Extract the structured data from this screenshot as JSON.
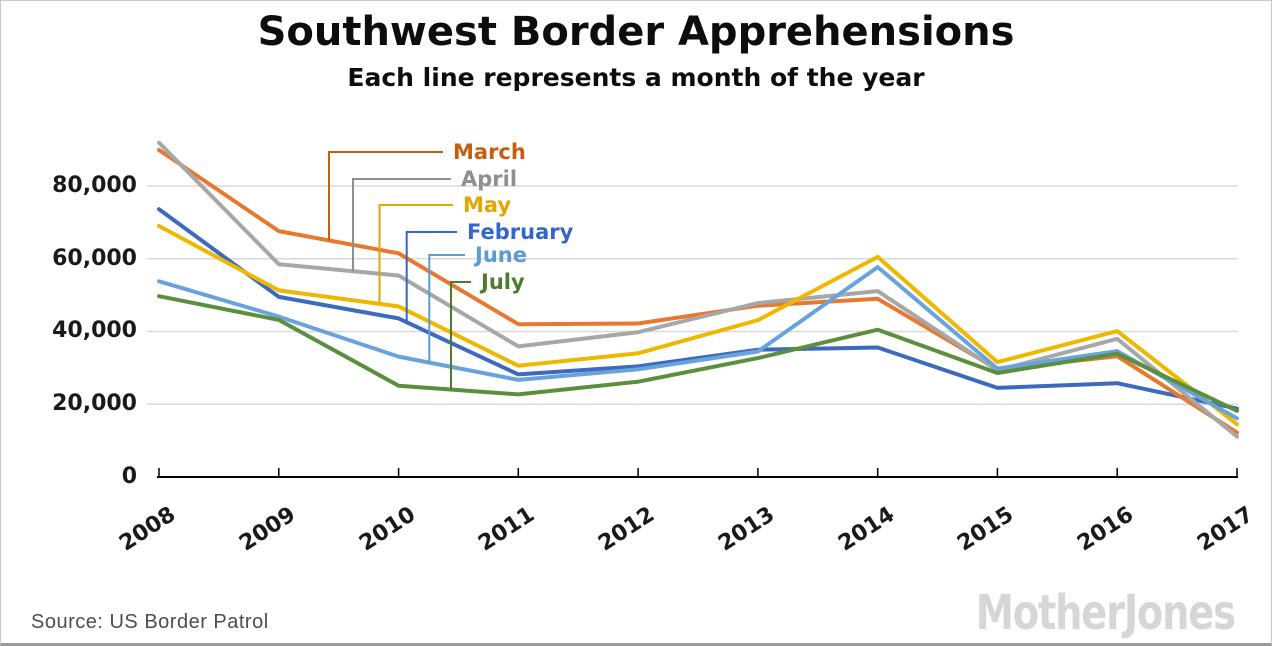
{
  "header": {
    "title": "Southwest Border Apprehensions",
    "subtitle": "Each line represents a month of the year"
  },
  "chart_data": {
    "type": "line",
    "title": "Southwest Border Apprehensions",
    "subtitle": "Each line represents a month of the year",
    "x_labels": [
      "2008",
      "2009",
      "2010",
      "2011",
      "2012",
      "2013",
      "2014",
      "2015",
      "2016",
      "2017"
    ],
    "ylim": [
      0,
      95000
    ],
    "y_ticks": [
      0,
      20000,
      40000,
      60000,
      80000
    ],
    "y_tick_labels": [
      "0",
      "20,000",
      "40,000",
      "60,000",
      "80,000"
    ],
    "grid": "horizontal-light-gray",
    "legend_position": "inside-top-left-with-callout-lines",
    "series": [
      {
        "name": "February",
        "line_color": "#3d6abf",
        "label_color": "#3366cc",
        "values": [
          73600,
          49500,
          43600,
          28200,
          30400,
          35000,
          35600,
          24500,
          25800,
          18800
        ]
      },
      {
        "name": "March",
        "line_color": "#e8782e",
        "label_color": "#c55e11",
        "values": [
          89900,
          67600,
          61500,
          42000,
          42200,
          47100,
          49000,
          29600,
          33200,
          12200
        ]
      },
      {
        "name": "April",
        "line_color": "#a7a7a7",
        "label_color": "#8f8f8f",
        "values": [
          91900,
          58500,
          55400,
          35900,
          39800,
          47800,
          51100,
          29300,
          38000,
          11100
        ]
      },
      {
        "name": "May",
        "line_color": "#efb800",
        "label_color": "#dfa700",
        "values": [
          69000,
          51300,
          46900,
          30600,
          34000,
          43100,
          60500,
          31600,
          40100,
          14500
        ]
      },
      {
        "name": "June",
        "line_color": "#68a3dc",
        "label_color": "#5b9bd5",
        "values": [
          53800,
          44100,
          33100,
          26700,
          29600,
          34500,
          57700,
          29800,
          34600,
          16100
        ]
      },
      {
        "name": "July",
        "line_color": "#5a8f3d",
        "label_color": "#4d7a2d",
        "values": [
          49700,
          43200,
          25100,
          22700,
          26200,
          32700,
          40500,
          28600,
          33900,
          18200
        ]
      }
    ],
    "legend": [
      "March",
      "April",
      "May",
      "February",
      "June",
      "July"
    ]
  },
  "footer": {
    "source": "Source: US Border Patrol",
    "logo_text": "MotherJones"
  }
}
